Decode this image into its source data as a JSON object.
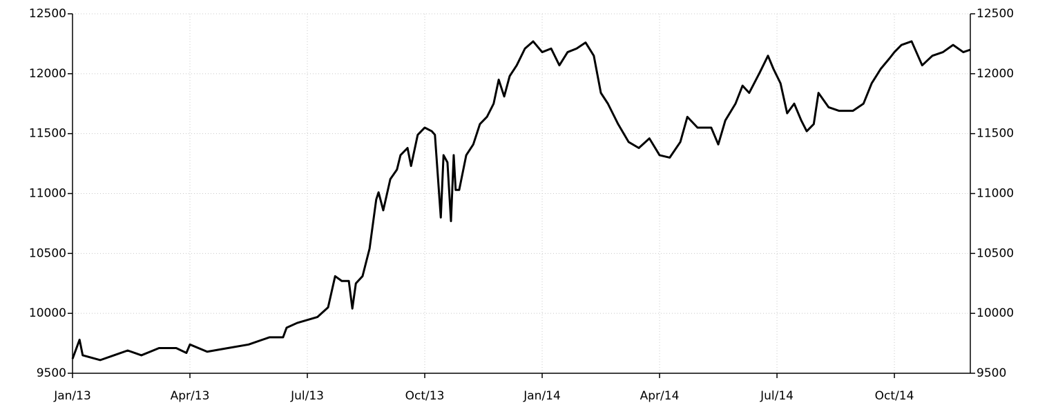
{
  "chart_data": {
    "type": "line",
    "x": [
      0,
      0.18,
      0.26,
      0.71,
      1.06,
      1.41,
      1.76,
      2.21,
      2.65,
      2.91,
      3.0,
      3.44,
      3.97,
      4.5,
      5.03,
      5.38,
      5.47,
      5.74,
      6.26,
      6.53,
      6.71,
      6.88,
      7.06,
      7.15,
      7.24,
      7.41,
      7.59,
      7.76,
      7.82,
      7.94,
      8.12,
      8.29,
      8.38,
      8.56,
      8.65,
      8.82,
      9.0,
      9.18,
      9.26,
      9.41,
      9.48,
      9.58,
      9.67,
      9.74,
      9.79,
      9.88,
      10.06,
      10.24,
      10.41,
      10.59,
      10.76,
      10.89,
      11.03,
      11.17,
      11.35,
      11.56,
      11.77,
      12.0,
      12.23,
      12.44,
      12.65,
      12.88,
      13.11,
      13.32,
      13.5,
      13.68,
      13.94,
      14.21,
      14.47,
      14.74,
      15.0,
      15.26,
      15.53,
      15.71,
      15.97,
      16.32,
      16.5,
      16.68,
      16.94,
      17.12,
      17.29,
      17.56,
      17.77,
      17.91,
      18.09,
      18.26,
      18.44,
      18.62,
      18.76,
      18.94,
      19.06,
      19.32,
      19.59,
      19.94,
      20.21,
      20.42,
      20.65,
      20.88,
      21.0,
      21.18,
      21.44,
      21.71,
      21.97,
      22.24,
      22.5,
      22.76,
      22.94
    ],
    "series": [
      {
        "color": "#000000",
        "values": [
          9620,
          9780,
          9650,
          9610,
          9650,
          9690,
          9650,
          9710,
          9710,
          9670,
          9740,
          9680,
          9710,
          9740,
          9800,
          9800,
          9880,
          9920,
          9970,
          10050,
          10310,
          10270,
          10270,
          10040,
          10250,
          10310,
          10540,
          10950,
          11010,
          10860,
          11120,
          11200,
          11320,
          11380,
          11230,
          11490,
          11550,
          11520,
          11490,
          10800,
          11320,
          11260,
          10770,
          11320,
          11030,
          11030,
          11320,
          11410,
          11580,
          11640,
          11750,
          11950,
          11810,
          11980,
          12070,
          12210,
          12270,
          12180,
          12210,
          12070,
          12180,
          12210,
          12260,
          12150,
          11840,
          11750,
          11580,
          11430,
          11380,
          11460,
          11320,
          11300,
          11430,
          11640,
          11550,
          11550,
          11410,
          11610,
          11750,
          11900,
          11840,
          12010,
          12150,
          12040,
          11920,
          11670,
          11750,
          11610,
          11520,
          11580,
          11840,
          11720,
          11690,
          11690,
          11750,
          11920,
          12040,
          12130,
          12180,
          12240,
          12270,
          12070,
          12150,
          12180,
          12240,
          12180,
          12200
        ]
      }
    ],
    "xlim": [
      0,
      22.94
    ],
    "xticks": [
      {
        "value": 0,
        "label": "Jan/13"
      },
      {
        "value": 3,
        "label": "Apr/13"
      },
      {
        "value": 6,
        "label": "Jul/13"
      },
      {
        "value": 9,
        "label": "Oct/13"
      },
      {
        "value": 12,
        "label": "Jan/14"
      },
      {
        "value": 15,
        "label": "Apr/14"
      },
      {
        "value": 18,
        "label": "Jul/14"
      },
      {
        "value": 21,
        "label": "Oct/14"
      }
    ],
    "ylim": [
      9500,
      12500
    ],
    "yticks": [
      9500,
      10000,
      10500,
      11000,
      11500,
      12000,
      12500
    ],
    "grid": true
  }
}
